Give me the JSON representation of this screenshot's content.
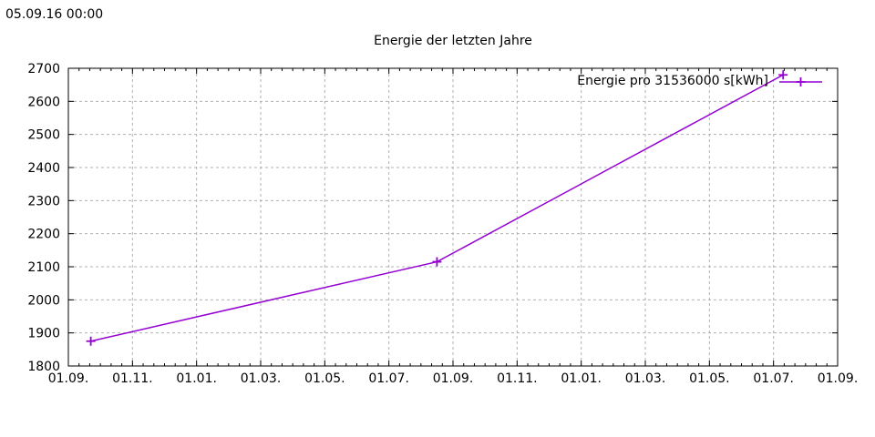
{
  "header": {
    "timestamp": "05.09.16 00:00"
  },
  "chart_data": {
    "type": "line",
    "title": "Energie der letzten Jahre",
    "x_axis": {
      "kind": "time",
      "range_months": [
        0,
        24
      ],
      "major_step_months": 2,
      "minor_divisions_per_major": 6,
      "tick_labels": [
        "01.09.",
        "01.11.",
        "01.01.",
        "01.03.",
        "01.05.",
        "01.07.",
        "01.09.",
        "01.11.",
        "01.01.",
        "01.03.",
        "01.05.",
        "01.07.",
        "01.09."
      ],
      "grid": true
    },
    "y_axis": {
      "min": 1800,
      "max": 2700,
      "step": 100,
      "tick_labels": [
        "1800",
        "1900",
        "2000",
        "2100",
        "2200",
        "2300",
        "2400",
        "2500",
        "2600",
        "2700"
      ],
      "grid": true
    },
    "grid_color": "#b0b0b0",
    "series": [
      {
        "name": "Energie pro 31536000 s[kWh]",
        "color": "#9400d3",
        "marker": "plus",
        "points": [
          {
            "x_months": 0.7,
            "y_kwh": 1875
          },
          {
            "x_months": 11.5,
            "y_kwh": 2115
          },
          {
            "x_months": 22.3,
            "y_kwh": 2680
          }
        ]
      }
    ],
    "legend": {
      "position": "top-right",
      "boxed": false
    }
  }
}
